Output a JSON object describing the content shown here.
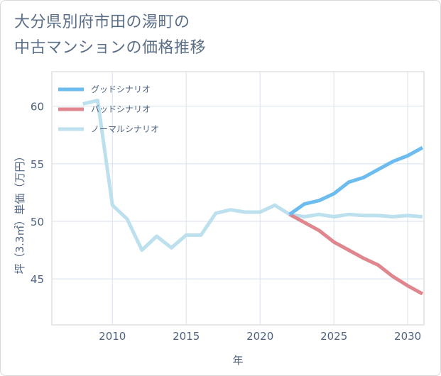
{
  "title": {
    "line1": "大分県別府市田の湯町の",
    "line2": "中古マンションの価格推移"
  },
  "chart_data": {
    "type": "line",
    "title": "大分県別府市田の湯町の中古マンションの価格推移",
    "xlabel": "年",
    "ylabel": "坪（3.3㎡）単価（万円）",
    "xlim": [
      2005.9,
      2031.1
    ],
    "ylim": [
      41.0,
      63.0
    ],
    "xticks": [
      2010,
      2015,
      2020,
      2025,
      2030
    ],
    "yticks": [
      45,
      50,
      55,
      60
    ],
    "grid": true,
    "legend_position": "top-left",
    "series": [
      {
        "name": "グッドシナリオ",
        "color": "#6cbcef",
        "x": [
          2022,
          2023,
          2024,
          2025,
          2026,
          2027,
          2028,
          2029,
          2030,
          2031
        ],
        "y": [
          50.6,
          51.5,
          51.8,
          52.4,
          53.4,
          53.8,
          54.5,
          55.2,
          55.7,
          56.4
        ]
      },
      {
        "name": "バッドシナリオ",
        "color": "#e0868e",
        "x": [
          2022,
          2023,
          2024,
          2025,
          2026,
          2027,
          2028,
          2029,
          2030,
          2031
        ],
        "y": [
          50.6,
          49.9,
          49.2,
          48.2,
          47.5,
          46.8,
          46.2,
          45.2,
          44.4,
          43.7
        ]
      },
      {
        "name": "ノーマルシナリオ",
        "color": "#bde0ee",
        "x": [
          2008,
          2009,
          2010,
          2011,
          2012,
          2013,
          2014,
          2015,
          2016,
          2017,
          2018,
          2019,
          2020,
          2021,
          2022,
          2023,
          2024,
          2025,
          2026,
          2027,
          2028,
          2029,
          2030,
          2031
        ],
        "y": [
          60.2,
          60.5,
          51.4,
          50.2,
          47.5,
          48.7,
          47.7,
          48.8,
          48.8,
          50.7,
          51.0,
          50.8,
          50.8,
          51.4,
          50.6,
          50.4,
          50.6,
          50.4,
          50.6,
          50.5,
          50.5,
          50.4,
          50.5,
          50.4
        ]
      }
    ]
  }
}
